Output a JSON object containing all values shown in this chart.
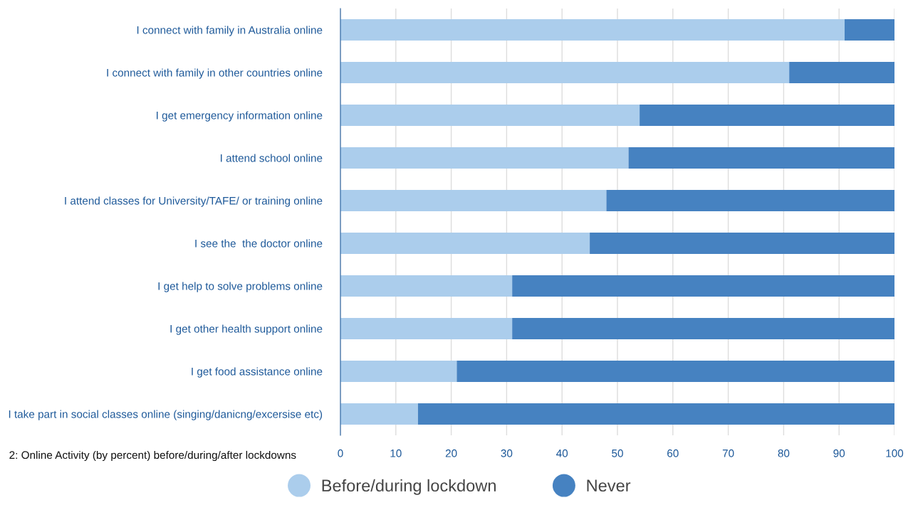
{
  "chart_data": {
    "type": "bar",
    "orientation": "horizontal",
    "stacked": true,
    "categories": [
      "I connect with family in Australia online",
      "I connect with family in other countries online",
      "I get emergency information online",
      "I attend school online",
      "I attend classes for University/TAFE/ or training online",
      "I see the  the doctor online",
      "I get help to solve problems online",
      "I get other health support online",
      "I get food assistance online",
      "I take part in social classes online (singing/danicng/excersise etc)"
    ],
    "series": [
      {
        "name": "Before/during lockdown",
        "color": "#abcdec",
        "values": [
          91,
          81,
          54,
          52,
          48,
          45,
          31,
          31,
          21,
          14
        ]
      },
      {
        "name": "Never",
        "color": "#4682c1",
        "values": [
          9,
          19,
          46,
          48,
          52,
          55,
          69,
          69,
          79,
          86
        ]
      }
    ],
    "xlim": [
      0,
      100
    ],
    "xticks": [
      0,
      10,
      20,
      30,
      40,
      50,
      60,
      70,
      80,
      90,
      100
    ],
    "grid": "x",
    "legend": "bottom",
    "marker": "circle",
    "annotations": [
      "2: Online Activity (by percent) before/during/after lockdowns"
    ]
  }
}
